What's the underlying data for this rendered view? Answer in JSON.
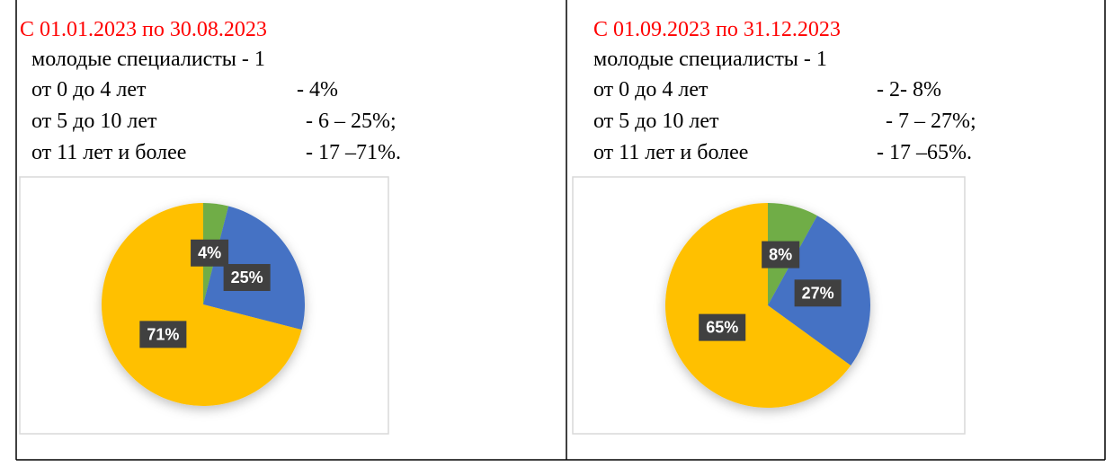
{
  "cells": [
    {
      "title": "С 01.01.2023 по 30.08.2023",
      "lines": [
        "молодые специалисты - 1",
        [
          "от 0 до 4 лет",
          "- 4%"
        ],
        [
          "от 5 до 10 лет",
          "- 6 – 25%;"
        ],
        [
          "от 11 лет и более",
          "- 17 –71%."
        ]
      ],
      "chart": {
        "type": "pie",
        "values": [
          4,
          25,
          71
        ],
        "value_labels": [
          "4%",
          "25%",
          "71%"
        ],
        "colors": [
          "#70ad47",
          "#4472c4",
          "#ffc000"
        ]
      }
    },
    {
      "title": "С 01.09.2023 по 31.12.2023",
      "lines": [
        "молодые специалисты - 1",
        [
          "от 0 до 4 лет",
          "- 2- 8%"
        ],
        [
          "от 5 до 10 лет",
          "- 7 – 27%;"
        ],
        [
          "от 11 лет и более",
          "- 17 –65%."
        ]
      ],
      "chart": {
        "type": "pie",
        "values": [
          8,
          27,
          65
        ],
        "value_labels": [
          "8%",
          "27%",
          "65%"
        ],
        "colors": [
          "#70ad47",
          "#4472c4",
          "#ffc000"
        ]
      }
    }
  ]
}
